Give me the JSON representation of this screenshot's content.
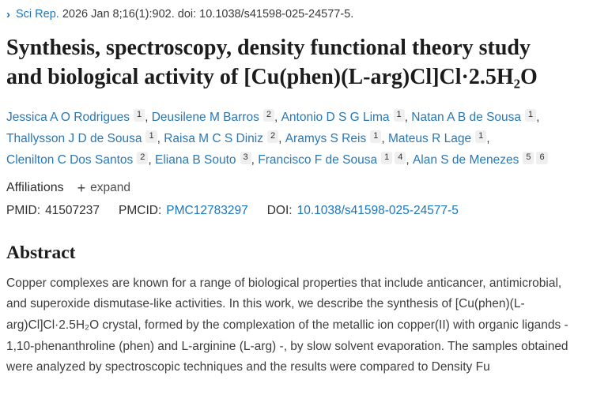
{
  "colors": {
    "link_blue": "#1b75bc",
    "author_link_blue": "#2b77b4",
    "heading_text": "#1c1c1c",
    "body_text": "#3d3d3d",
    "badge_background": "#efefef"
  },
  "icons": {
    "chevron_right": "›",
    "plus": "+"
  },
  "header": {
    "journal": "Sci Rep.",
    "citation": "2026 Jan 8;16(1):902. doi: 10.1038/s41598-025-24577-5."
  },
  "title": "Synthesis, spectroscopy, density functional theory study and biological activity of [Cu(phen)(L-arg)Cl]Cl·2.5H₂O",
  "authors_separator": ", ",
  "authors": [
    {
      "name": "Jessica A O Rodrigues",
      "affs": [
        "1"
      ]
    },
    {
      "name": "Deusilene M Barros",
      "affs": [
        "2"
      ]
    },
    {
      "name": "Antonio D S G Lima",
      "affs": [
        "1"
      ]
    },
    {
      "name": "Natan A B de Sousa",
      "affs": [
        "1"
      ]
    },
    {
      "name": "Thallysson J D de Sousa",
      "affs": [
        "1"
      ]
    },
    {
      "name": "Raisa M C S Diniz",
      "affs": [
        "2"
      ]
    },
    {
      "name": "Aramys S Reis",
      "affs": [
        "1"
      ]
    },
    {
      "name": "Mateus R Lage",
      "affs": [
        "1"
      ]
    },
    {
      "name": "Clenilton C Dos Santos",
      "affs": [
        "2"
      ]
    },
    {
      "name": "Eliana B Souto",
      "affs": [
        "3"
      ]
    },
    {
      "name": "Francisco F de Sousa",
      "affs": [
        "1",
        "4"
      ]
    },
    {
      "name": "Alan S de Menezes",
      "affs": [
        "5",
        "6"
      ]
    }
  ],
  "affiliations": {
    "label": "Affiliations",
    "expand_label": "expand"
  },
  "identifiers": {
    "pmid_label": "PMID:",
    "pmid": "41507237",
    "pmcid_label": "PMCID:",
    "pmcid": "PMC12783297",
    "doi_label": "DOI:",
    "doi": "10.1038/s41598-025-24577-5"
  },
  "abstract": {
    "heading": "Abstract",
    "text": "Copper complexes are known for a range of biological properties that include anticancer, antimicrobial, and superoxide dismutase-like activities. In this work, we describe the synthesis of [Cu(phen)(L-arg)Cl]Cl·2.5H₂O crystal, formed by the complexation of the metallic ion copper(II) with organic ligands - 1,10-phenanthroline (phen) and L-arginine (L-arg) -, by slow solvent evaporation. The samples obtained were analyzed by spectroscopic techniques and the results were compared to Density Fu"
  }
}
